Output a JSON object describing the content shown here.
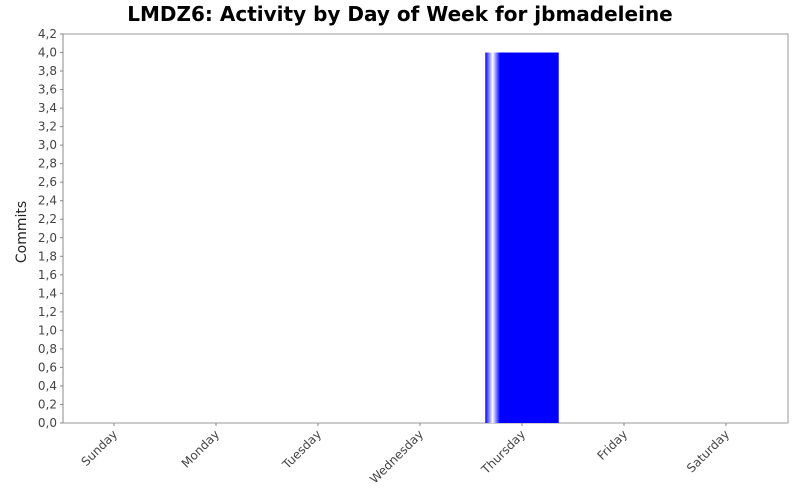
{
  "chart_data": {
    "type": "bar",
    "title": "LMDZ6: Activity by Day of Week for jbmadeleine",
    "xlabel": "",
    "ylabel": "Commits",
    "categories": [
      "Sunday",
      "Monday",
      "Tuesday",
      "Wednesday",
      "Thursday",
      "Friday",
      "Saturday"
    ],
    "values": [
      0,
      0,
      0,
      0,
      4,
      0,
      0
    ],
    "ylim": [
      0,
      4.2
    ],
    "yticks": [
      "0,0",
      "0,2",
      "0,4",
      "0,6",
      "0,8",
      "1,0",
      "1,2",
      "1,4",
      "1,6",
      "1,8",
      "2,0",
      "2,2",
      "2,4",
      "2,6",
      "2,8",
      "3,0",
      "3,2",
      "3,4",
      "3,6",
      "3,8",
      "4,0",
      "4,2"
    ],
    "grid": false,
    "legend": "none",
    "colors": {
      "bar": "#0000ff",
      "highlight": "#ffffff",
      "axis": "#888888",
      "plot_border": "#999999"
    }
  }
}
